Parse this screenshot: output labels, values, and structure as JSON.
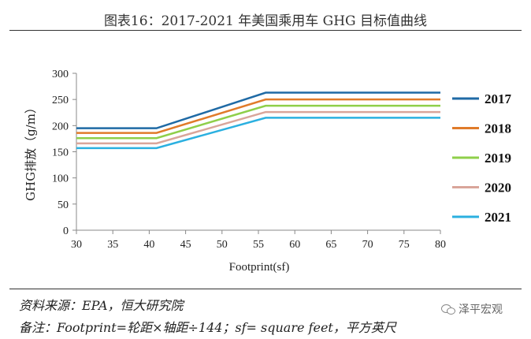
{
  "header": {
    "title": "图表16：2017-2021 年美国乘用车 GHG 目标值曲线"
  },
  "footer": {
    "source": "资料来源：EPA，恒大研究院",
    "note": "备注：Footprint=轮距×轴距÷144；sf= square feet，平方英尺",
    "watermark": "泽平宏观"
  },
  "colors": {
    "2017": "#1f6aa5",
    "2018": "#e07b2a",
    "2019": "#8fcf4a",
    "2020": "#d9a59a",
    "2021": "#2bb0e0"
  },
  "chart_data": {
    "type": "line",
    "xlabel": "Footprint(sf)",
    "ylabel": "GHG排放（g/m）",
    "xlim": [
      30,
      80
    ],
    "ylim": [
      0,
      300
    ],
    "xticks": [
      30,
      35,
      40,
      45,
      50,
      55,
      60,
      65,
      70,
      75,
      80
    ],
    "yticks": [
      0,
      50,
      100,
      150,
      200,
      250,
      300
    ],
    "grid": false,
    "legend_position": "right",
    "series": [
      {
        "name": "2017",
        "x": [
          30.0,
          41.0,
          56.0,
          80.0
        ],
        "y": [
          195,
          195,
          263,
          263
        ]
      },
      {
        "name": "2018",
        "x": [
          30.0,
          41.0,
          56.0,
          80.0
        ],
        "y": [
          186,
          186,
          250,
          250
        ]
      },
      {
        "name": "2019",
        "x": [
          30.0,
          41.0,
          56.0,
          80.0
        ],
        "y": [
          176,
          176,
          238,
          238
        ]
      },
      {
        "name": "2020",
        "x": [
          30.0,
          41.0,
          56.0,
          80.0
        ],
        "y": [
          166,
          166,
          226,
          226
        ]
      },
      {
        "name": "2021",
        "x": [
          30.0,
          41.0,
          56.0,
          80.0
        ],
        "y": [
          157,
          157,
          215,
          215
        ]
      }
    ]
  }
}
